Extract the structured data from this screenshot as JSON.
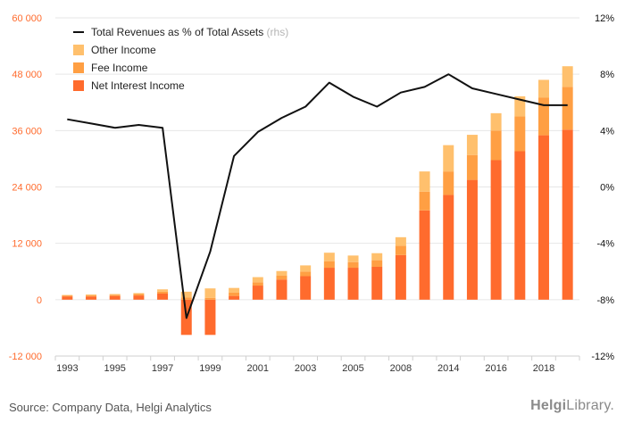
{
  "chart_data": {
    "type": "bar",
    "categories": [
      "1993",
      "1994",
      "1995",
      "1996",
      "1997",
      "1998",
      "1999",
      "2000",
      "2001",
      "2002",
      "2003",
      "2004",
      "2005",
      "2006",
      "2008",
      "2010",
      "2014",
      "2015",
      "2016",
      "2017",
      "2018",
      "2019"
    ],
    "x_tick_labels": [
      "1993",
      "",
      "1995",
      "",
      "1997",
      "",
      "1999",
      "",
      "2001",
      "",
      "2003",
      "",
      "2005",
      "",
      "2008",
      "",
      "2014",
      "",
      "2016",
      "",
      "2018",
      ""
    ],
    "series": [
      {
        "name": "Net Interest Income",
        "color": "#ff6b2d",
        "values": [
          700,
          700,
          800,
          900,
          1300,
          -7500,
          -7500,
          800,
          3000,
          4300,
          5000,
          6800,
          6800,
          7000,
          9500,
          19000,
          22300,
          25500,
          29700,
          31600,
          35000,
          36200
        ]
      },
      {
        "name": "Fee Income",
        "color": "#ff9f43",
        "values": [
          200,
          200,
          200,
          300,
          400,
          500,
          400,
          700,
          700,
          800,
          1000,
          1400,
          1200,
          1400,
          2000,
          4000,
          5000,
          5300,
          6300,
          7400,
          8000,
          9100
        ]
      },
      {
        "name": "Other Income",
        "color": "#ffc06d",
        "values": [
          100,
          200,
          200,
          200,
          500,
          1200,
          2000,
          1000,
          1100,
          1000,
          1300,
          1800,
          1400,
          1500,
          1800,
          4300,
          5600,
          4300,
          3700,
          4300,
          3800,
          4400
        ]
      }
    ],
    "line_series": {
      "name": "Total Revenues as % of Total Assets",
      "name_suffix": " (rhs)",
      "color": "#111111",
      "values": [
        4.8,
        4.5,
        4.2,
        4.4,
        4.2,
        -9.3,
        -4.6,
        2.2,
        3.9,
        4.9,
        5.7,
        7.4,
        6.4,
        5.7,
        6.7,
        7.1,
        8.0,
        7.0,
        6.6,
        6.2,
        5.8,
        5.8
      ]
    },
    "y_left": {
      "min": -12000,
      "max": 60000,
      "ticks": [
        -12000,
        0,
        12000,
        24000,
        36000,
        48000,
        60000
      ],
      "tick_labels": [
        "-12 000",
        "0",
        "12 000",
        "24 000",
        "36 000",
        "48 000",
        "60 000"
      ],
      "color": "#ff6b2d"
    },
    "y_right": {
      "min": -12,
      "max": 12,
      "ticks": [
        -12,
        -8,
        -4,
        0,
        4,
        8,
        12
      ],
      "tick_labels": [
        "-12%",
        "-8%",
        "-4%",
        "0%",
        "4%",
        "8%",
        "12%"
      ],
      "color": "#111111"
    },
    "grid": true,
    "legend_position": "top-left"
  },
  "footer": {
    "source": "Source: Company Data, Helgi Analytics",
    "brand_bold": "Helgi",
    "brand_rest": "Library."
  }
}
